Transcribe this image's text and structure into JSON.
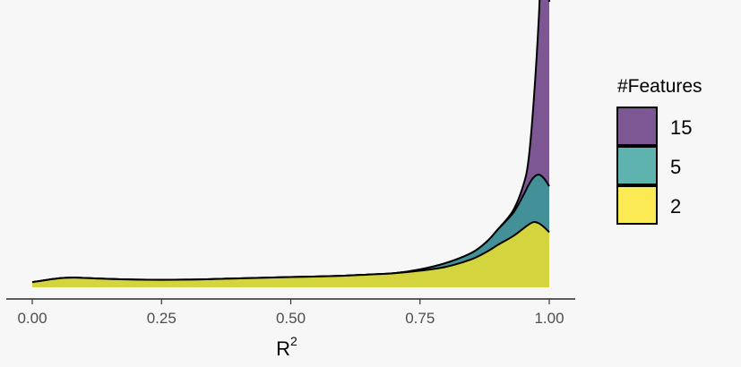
{
  "chart_data": {
    "type": "area",
    "subtype": "stacked-density",
    "xlabel_base": "R",
    "xlabel_sup": "2",
    "xlim": [
      0,
      1
    ],
    "x_ticks": [
      0.0,
      0.25,
      0.5,
      0.75,
      1.0
    ],
    "x_tick_labels": [
      "0.00",
      "0.25",
      "0.50",
      "0.75",
      "1.00"
    ],
    "y_axis_shown": false,
    "grid": false,
    "legend": {
      "title": "#Features",
      "position": "right",
      "order": [
        "15",
        "5",
        "2"
      ]
    },
    "x": [
      0.0,
      0.05,
      0.08,
      0.12,
      0.2,
      0.3,
      0.4,
      0.5,
      0.6,
      0.65,
      0.7,
      0.75,
      0.8,
      0.85,
      0.88,
      0.9,
      0.93,
      0.95,
      0.96,
      0.97,
      0.98,
      0.99,
      1.0
    ],
    "series": [
      {
        "name": "2",
        "color": "#fde725",
        "values": [
          0.02,
          0.035,
          0.038,
          0.035,
          0.03,
          0.03,
          0.035,
          0.04,
          0.045,
          0.05,
          0.055,
          0.065,
          0.08,
          0.11,
          0.14,
          0.165,
          0.2,
          0.23,
          0.245,
          0.255,
          0.25,
          0.235,
          0.215
        ]
      },
      {
        "name": "5",
        "color": "#35a09a",
        "values": [
          0.0,
          0.0,
          0.0,
          0.0,
          0.0,
          0.0,
          0.0,
          0.0,
          0.0,
          0.0,
          0.0,
          0.005,
          0.015,
          0.025,
          0.04,
          0.06,
          0.09,
          0.13,
          0.155,
          0.175,
          0.19,
          0.19,
          0.18
        ]
      },
      {
        "name": "15",
        "color": "#5b2a78",
        "values": [
          0.0,
          0.0,
          0.0,
          0.0,
          0.0,
          0.0,
          0.0,
          0.0,
          0.0,
          0.0,
          0.0,
          0.0,
          0.0,
          0.0,
          0.0,
          0.0,
          0.01,
          0.04,
          0.1,
          0.3,
          0.62,
          1.1,
          0.72
        ]
      }
    ]
  }
}
